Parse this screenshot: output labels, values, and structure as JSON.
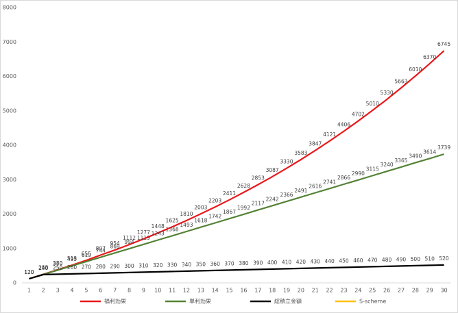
{
  "chart_data": {
    "type": "line",
    "categories": [
      1,
      2,
      3,
      4,
      5,
      6,
      7,
      8,
      9,
      10,
      11,
      12,
      13,
      14,
      15,
      16,
      17,
      18,
      19,
      20,
      21,
      22,
      23,
      24,
      25,
      26,
      27,
      28,
      29,
      30
    ],
    "series": [
      {
        "name": "福利効果",
        "color": "#e8191b",
        "values": [
          120,
          250,
          380,
          513,
          655,
          807,
          954,
          1112,
          1277,
          1448,
          1625,
          1810,
          2003,
          2203,
          2411,
          2628,
          2853,
          3087,
          3330,
          3583,
          3847,
          4121,
          4406,
          4702,
          5010,
          5330,
          5663,
          6010,
          6370,
          6745
        ]
      },
      {
        "name": "単利効果",
        "color": "#548235",
        "values": [
          120,
          245,
          370,
          495,
          619,
          744,
          869,
          994,
          1119,
          1243,
          1368,
          1493,
          1618,
          1742,
          1867,
          1992,
          2117,
          2242,
          2366,
          2491,
          2616,
          2741,
          2866,
          2990,
          3115,
          3240,
          3365,
          3490,
          3614,
          3739
        ]
      },
      {
        "name": "総積立金額",
        "color": "#000000",
        "values": [
          120,
          240,
          250,
          260,
          270,
          280,
          290,
          300,
          310,
          320,
          330,
          340,
          350,
          360,
          370,
          380,
          390,
          400,
          410,
          420,
          430,
          440,
          450,
          460,
          470,
          480,
          490,
          500,
          510,
          520
        ]
      },
      {
        "name": "S-scheme",
        "color": "#ffc000",
        "values": [
          null,
          null,
          null,
          null,
          null,
          null,
          null,
          null,
          null,
          null,
          null,
          null,
          null,
          null,
          null,
          null,
          null,
          null,
          null,
          null,
          null,
          null,
          null,
          null,
          null,
          null,
          null,
          null,
          null,
          null
        ]
      }
    ],
    "ylim": [
      0,
      8000
    ],
    "yticks": [
      0,
      1000,
      2000,
      3000,
      4000,
      5000,
      6000,
      7000,
      8000
    ],
    "grid": false,
    "legend": "bottom"
  }
}
